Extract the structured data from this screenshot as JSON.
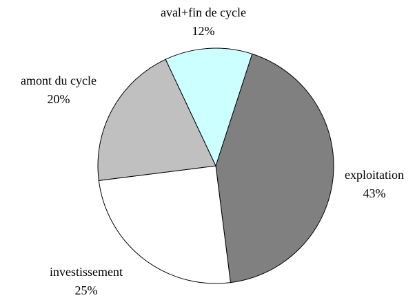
{
  "chart_data": {
    "type": "pie",
    "categories": [
      "exploitation",
      "investissement",
      "amont du cycle",
      "aval+fin de cycle"
    ],
    "values": [
      43,
      25,
      20,
      12
    ],
    "value_labels": [
      "43%",
      "25%",
      "20%",
      "12%"
    ],
    "colors": [
      "#808080",
      "#ffffff",
      "#c0c0c0",
      "#ccffff"
    ]
  }
}
